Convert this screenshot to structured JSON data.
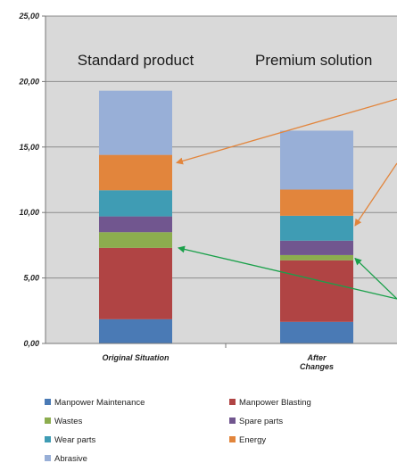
{
  "chart_data": {
    "type": "bar",
    "stacked": true,
    "categories": [
      "Original Situation",
      "After Changes"
    ],
    "category_headers": [
      "Standard product",
      "Premium solution"
    ],
    "series": [
      {
        "name": "Manpower Maintenance",
        "color": "#4a7ab5",
        "values": [
          1.85,
          1.65
        ]
      },
      {
        "name": "Manpower Blasting",
        "color": "#b04444",
        "values": [
          5.45,
          4.7
        ]
      },
      {
        "name": "Wastes",
        "color": "#8cad4e",
        "values": [
          1.2,
          0.4
        ]
      },
      {
        "name": "Spare parts",
        "color": "#71568f",
        "values": [
          1.2,
          1.1
        ]
      },
      {
        "name": "Wear parts",
        "color": "#3f9cb4",
        "values": [
          2.0,
          1.9
        ]
      },
      {
        "name": "Energy",
        "color": "#e2853c",
        "values": [
          2.7,
          2.0
        ]
      },
      {
        "name": "Abrasive",
        "color": "#98afd7",
        "values": [
          4.9,
          4.5
        ]
      }
    ],
    "yticks": [
      "0,00",
      "5,00",
      "10,00",
      "15,00",
      "20,00",
      "25,00"
    ],
    "ylim": [
      0,
      25
    ],
    "grid": true,
    "legend_position": "bottom",
    "plot_background": "#d9d9d9",
    "arrow_colors": {
      "orange": "#e2853c",
      "green": "#1aa04a"
    }
  }
}
